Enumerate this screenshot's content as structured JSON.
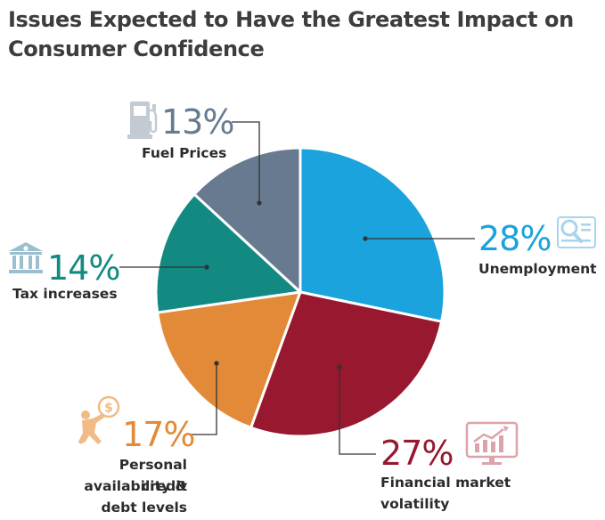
{
  "title_lines": [
    "Issues Expected to Have the Greatest Impact on",
    "Consumer Confidence"
  ],
  "chart_data": {
    "type": "pie",
    "title": "Issues Expected to Have the Greatest Impact on Consumer Confidence",
    "start_angle_deg": 0,
    "direction": "clockwise",
    "slices": [
      {
        "label": "Unemployment",
        "value": 28,
        "value_label": "28%",
        "color": "#1aa3dc",
        "icon": "magnifier-document-icon"
      },
      {
        "label": "Financial market volatility",
        "label_lines": [
          "Financial market",
          "volatility"
        ],
        "value": 27,
        "value_label": "27%",
        "color": "#97182f",
        "icon": "monitor-chart-icon"
      },
      {
        "label": "Personal credit availability & debt levels",
        "label_lines": [
          "Personal credit",
          "availability &",
          "debt levels"
        ],
        "value": 17,
        "value_label": "17%",
        "color": "#e28a37",
        "icon": "person-pushing-coin-icon"
      },
      {
        "label": "Tax increases",
        "value": 14,
        "value_label": "14%",
        "color": "#128a82",
        "icon": "bank-building-icon"
      },
      {
        "label": "Fuel Prices",
        "value": 13,
        "value_label": "13%",
        "color": "#677a90",
        "icon": "fuel-pump-icon"
      }
    ],
    "legend": "none",
    "labels": "outside-with-leader-lines"
  },
  "colors": {
    "title": "#3d3d3d",
    "label": "#2b2b2b",
    "leader": "#333333",
    "slice_border": "#ffffff"
  }
}
